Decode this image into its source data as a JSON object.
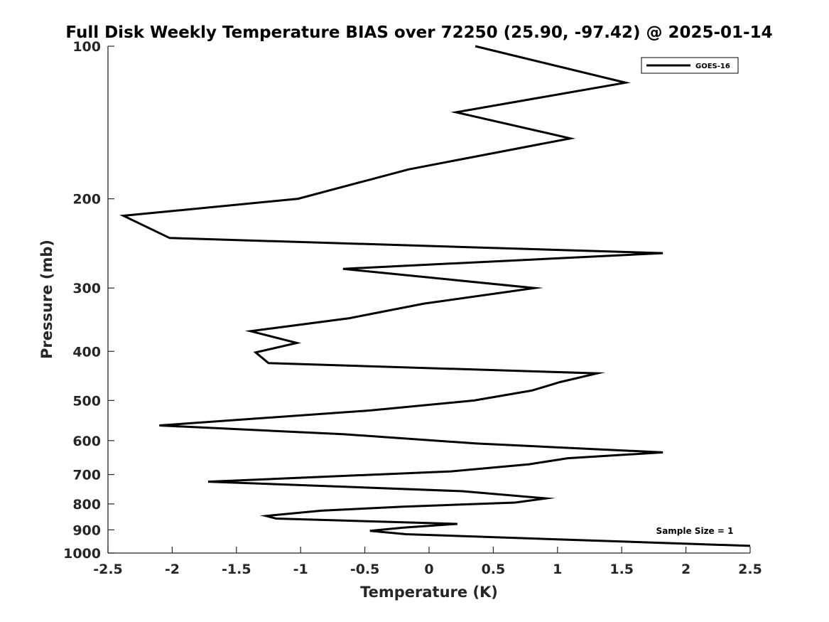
{
  "chart_data": {
    "type": "line",
    "title": "Full Disk Weekly Temperature BIAS over 72250 (25.90, -97.42) @ 2025-01-14",
    "xlabel": "Temperature (K)",
    "ylabel": "Pressure (mb)",
    "xlim": [
      -2.5,
      2.5
    ],
    "ylim": [
      100,
      1000
    ],
    "yscale": "log",
    "y_reversed": true,
    "grid": false,
    "x_ticks": [
      -2.5,
      -2,
      -1.5,
      -1,
      -0.5,
      0,
      0.5,
      1,
      1.5,
      2,
      2.5
    ],
    "x_tick_labels": [
      "-2.5",
      "-2",
      "-1.5",
      "-1",
      "-0.5",
      "0",
      "0.5",
      "1",
      "1.5",
      "2",
      "2.5"
    ],
    "y_ticks": [
      100,
      200,
      300,
      400,
      500,
      600,
      700,
      800,
      900,
      1000
    ],
    "y_tick_labels": [
      "100",
      "200",
      "300",
      "400",
      "500",
      "600",
      "700",
      "800",
      "900",
      "1000"
    ],
    "legend_position": "top-right",
    "annotation": "Sample Size = 1",
    "series": [
      {
        "name": "GOES-16",
        "color": "#000000",
        "x": [
          0.36,
          1.53,
          0.21,
          1.1,
          -0.16,
          -1.02,
          -2.38,
          -2.02,
          1.82,
          -0.67,
          0.82,
          -0.04,
          -0.62,
          -1.39,
          -1.03,
          -1.35,
          -1.25,
          1.31,
          1.02,
          0.8,
          0.35,
          -0.45,
          -2.1,
          -0.66,
          0.37,
          1.82,
          1.08,
          0.78,
          0.17,
          -1.72,
          0.26,
          0.91,
          0.67,
          -0.2,
          -0.84,
          -1.27,
          -1.19,
          0.22,
          -0.2,
          -0.46,
          -0.18,
          2.5
        ],
        "y": [
          100,
          118,
          135,
          152,
          175,
          200,
          216,
          239,
          256,
          275,
          300,
          322,
          344,
          365,
          385,
          402,
          422,
          442,
          460,
          478,
          500,
          523,
          560,
          583,
          608,
          633,
          650,
          668,
          690,
          723,
          755,
          780,
          795,
          810,
          825,
          845,
          855,
          876,
          891,
          904,
          918,
          968
        ]
      }
    ]
  }
}
